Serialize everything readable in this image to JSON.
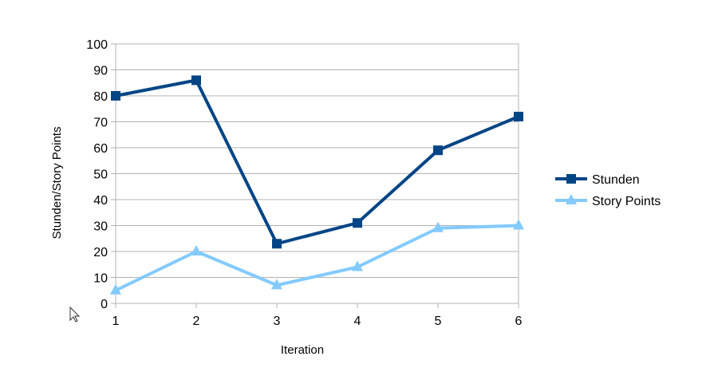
{
  "chart_data": {
    "type": "line",
    "title": "",
    "xlabel": "Iteration",
    "ylabel": "Stunden/Story Points",
    "x": [
      1,
      2,
      3,
      4,
      5,
      6
    ],
    "ylim": [
      0,
      100
    ],
    "yticks": [
      0,
      10,
      20,
      30,
      40,
      50,
      60,
      70,
      80,
      90,
      100
    ],
    "grid": "horizontal",
    "legend_position": "right",
    "series": [
      {
        "name": "Stunden",
        "values": [
          80,
          86,
          23,
          31,
          59,
          72
        ],
        "color": "#004586",
        "marker": "square"
      },
      {
        "name": "Story Points",
        "values": [
          5,
          20,
          7,
          14,
          29,
          30
        ],
        "color": "#83CAFF",
        "marker": "triangle"
      }
    ]
  }
}
